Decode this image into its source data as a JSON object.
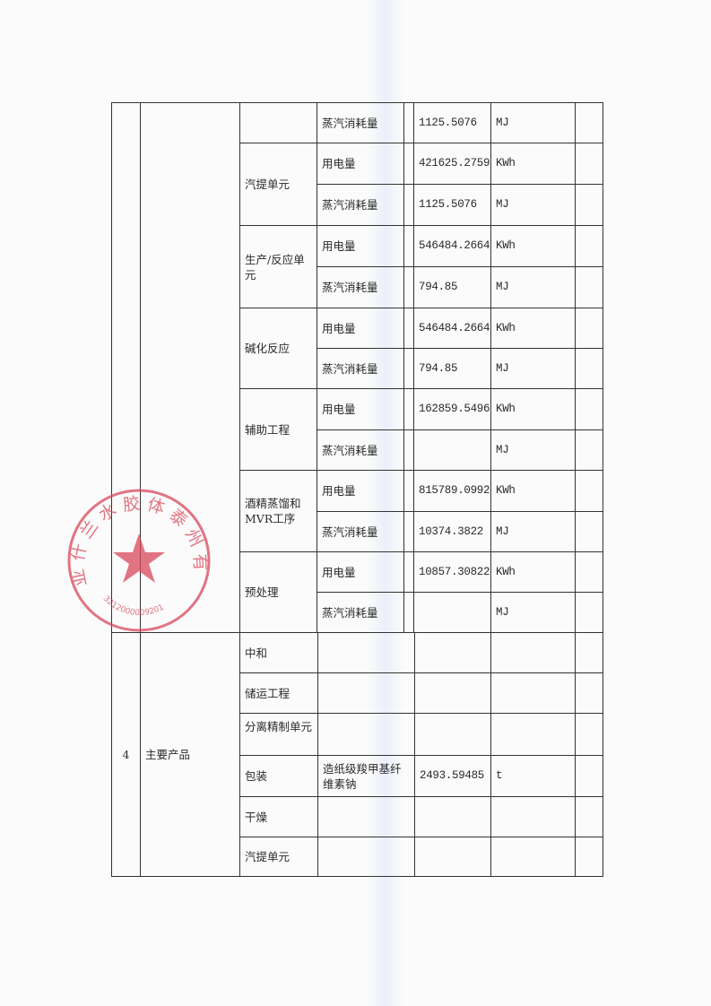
{
  "upper": {
    "groups": [
      {
        "unit": "",
        "rows": [
          {
            "item": "蒸汽消耗量",
            "value": "1125.5076",
            "measure": "MJ"
          }
        ]
      },
      {
        "unit": "汽提单元",
        "rows": [
          {
            "item": "用电量",
            "value": "421625.2759",
            "measure": "KWh"
          },
          {
            "item": "蒸汽消耗量",
            "value": "1125.5076",
            "measure": "MJ"
          }
        ]
      },
      {
        "unit": "生产/反应单元",
        "rows": [
          {
            "item": "用电量",
            "value": "546484.2664",
            "measure": "KWh"
          },
          {
            "item": "蒸汽消耗量",
            "value": "794.85",
            "measure": "MJ"
          }
        ]
      },
      {
        "unit": "碱化反应",
        "rows": [
          {
            "item": "用电量",
            "value": "546484.2664",
            "measure": "KWh"
          },
          {
            "item": "蒸汽消耗量",
            "value": "794.85",
            "measure": "MJ"
          }
        ]
      },
      {
        "unit": "辅助工程",
        "rows": [
          {
            "item": "用电量",
            "value": "162859.5496",
            "measure": "KWh"
          },
          {
            "item": "蒸汽消耗量",
            "value": "",
            "measure": "MJ"
          }
        ]
      },
      {
        "unit": "酒精蒸馏和MVR工序",
        "rows": [
          {
            "item": "用电量",
            "value": "815789.0992",
            "measure": "KWh"
          },
          {
            "item": "蒸汽消耗量",
            "value": "10374.3822",
            "measure": "MJ"
          }
        ]
      },
      {
        "unit": "预处理",
        "rows": [
          {
            "item": "用电量",
            "value": "10857.30822",
            "measure": "KWh"
          },
          {
            "item": "蒸汽消耗量",
            "value": "",
            "measure": "MJ"
          }
        ]
      }
    ]
  },
  "lower": {
    "index": "4",
    "category": "主要产品",
    "rows": [
      {
        "unit": "中和",
        "item": "",
        "value": "",
        "measure": ""
      },
      {
        "unit": "储运工程",
        "item": "",
        "value": "",
        "measure": ""
      },
      {
        "unit": "分离精制单元",
        "item": "",
        "value": "",
        "measure": ""
      },
      {
        "unit": "包装",
        "item": "造纸级羧甲基纤维素钠",
        "value": "2493.59485",
        "measure": "t"
      },
      {
        "unit": "干燥",
        "item": "",
        "value": "",
        "measure": ""
      },
      {
        "unit": "汽提单元",
        "item": "",
        "value": "",
        "measure": ""
      }
    ]
  },
  "stamp": {
    "text": "亚什兰水胶体泰州有限公司",
    "number": "3212000009201",
    "color": "#d9485a"
  }
}
